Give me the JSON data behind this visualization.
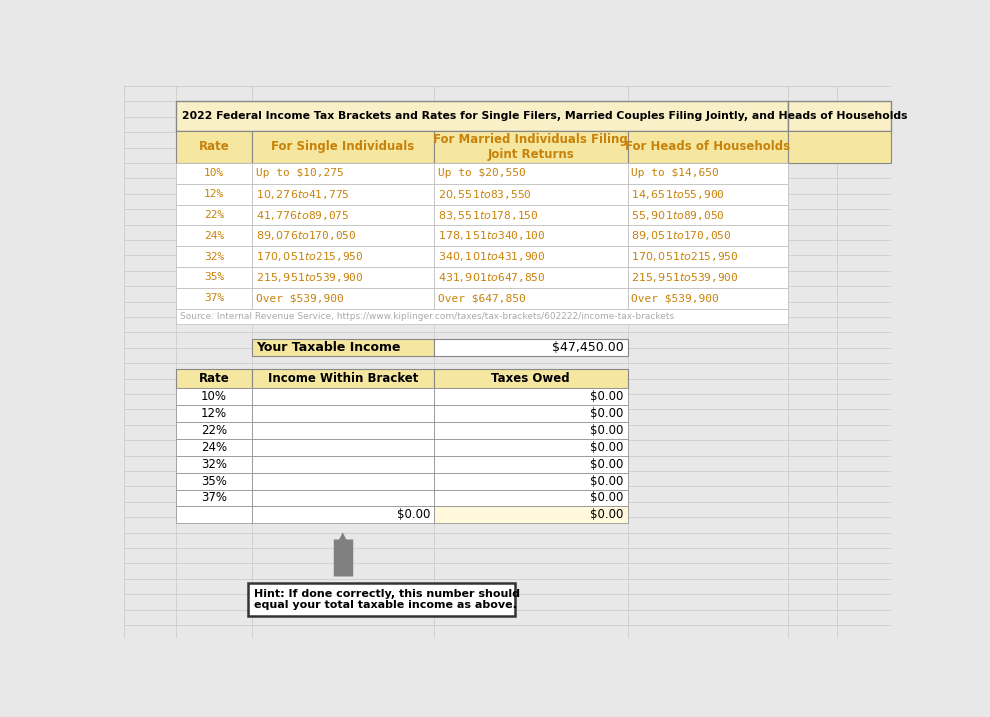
{
  "title": "2022 Federal Income Tax Brackets and Rates for Single Filers, Married Couples Filing Jointly, and Heads of Households",
  "title_bg": "#FAF0C8",
  "header_bg": "#F5E6A0",
  "source_text": "Source: Internal Revenue Service, https://www.kiplinger.com/taxes/tax-brackets/602222/income-tax-brackets",
  "top_table_headers": [
    "Rate",
    "For Single Individuals",
    "For Married Individuals Filing\nJoint Returns",
    "For Heads of Households"
  ],
  "rates": [
    "10%",
    "12%",
    "22%",
    "24%",
    "32%",
    "35%",
    "37%"
  ],
  "single_brackets": [
    "Up to $10,275",
    "$10,276 to $41,775",
    "$41,776 to $89,075",
    "$89,076 to $170,050",
    "$170,051 to $215,950",
    "$215,951 to $539,900",
    "Over $539,900"
  ],
  "married_brackets": [
    "Up to $20,550",
    "$20,551 to $83,550",
    "$83,551 to $178,150",
    "$178,151 to $340,100",
    "$340,101 to $431,900",
    "$431,901 to $647,850",
    "Over $647,850"
  ],
  "hoh_brackets": [
    "Up to $14,650",
    "$14,651 to $55,900",
    "$55,901 to $89,050",
    "$89,051 to $170,050",
    "$170,051 to $215,950",
    "$215,951 to $539,900",
    "Over $539,900"
  ],
  "taxable_income_label": "Your Taxable Income",
  "taxable_income_value": "$47,450.00",
  "bottom_table_headers": [
    "Rate",
    "Income Within Bracket",
    "Taxes Owed"
  ],
  "bottom_rates": [
    "10%",
    "12%",
    "22%",
    "24%",
    "32%",
    "35%",
    "37%"
  ],
  "taxes_owed": [
    "$0.00",
    "$0.00",
    "$0.00",
    "$0.00",
    "$0.00",
    "$0.00",
    "$0.00"
  ],
  "total_income_within": "$0.00",
  "total_taxes_owed": "$0.00",
  "hint_text": "Hint: If done correctly, this number should\nequal your total taxable income as above.",
  "bg_page": "#E8E8E8",
  "grid_color": "#C8C8C8",
  "text_orange": "#C8820A",
  "text_black": "#000000",
  "text_gray": "#AAAAAA"
}
